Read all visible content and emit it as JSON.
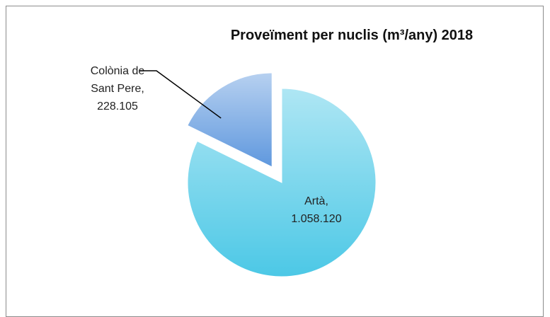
{
  "chart_data": {
    "type": "pie",
    "title": "Proveïment per nuclis (m³/any) 2018",
    "categories": [
      "Artà,",
      "Colònia de Sant Pere,"
    ],
    "values": [
      1058120,
      228105
    ],
    "value_labels": [
      "1.058.120",
      "228.105"
    ],
    "colors": [
      "#4cc8e6",
      "#5f98de"
    ]
  }
}
